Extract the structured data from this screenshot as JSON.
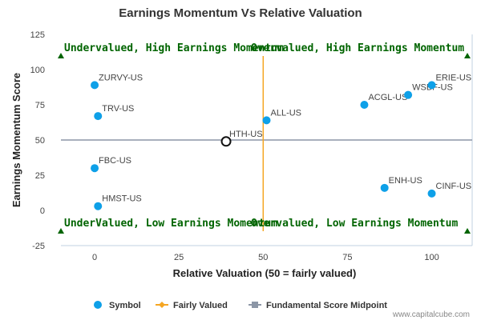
{
  "chart_data": {
    "type": "scatter",
    "title": "Earnings Momentum Vs Relative Valuation",
    "xlabel": "Relative Valuation (50 = fairly valued)",
    "ylabel": "Earnings Momentum Score",
    "xlim": [
      -10,
      112
    ],
    "ylim": [
      -25,
      125
    ],
    "x_ticks": [
      0,
      25,
      50,
      75,
      100
    ],
    "y_ticks": [
      -25,
      0,
      25,
      50,
      75,
      100,
      125
    ],
    "grid": false,
    "points": [
      {
        "label": "ZURVY-US",
        "x": 0,
        "y": 89
      },
      {
        "label": "TRV-US",
        "x": 1,
        "y": 67
      },
      {
        "label": "FBC-US",
        "x": 0,
        "y": 30
      },
      {
        "label": "HMST-US",
        "x": 1,
        "y": 3
      },
      {
        "label": "ALL-US",
        "x": 51,
        "y": 64
      },
      {
        "label": "ACGL-US",
        "x": 80,
        "y": 75
      },
      {
        "label": "WSBF-US",
        "x": 93,
        "y": 82
      },
      {
        "label": "ERIE-US",
        "x": 100,
        "y": 89
      },
      {
        "label": "ENH-US",
        "x": 86,
        "y": 16
      },
      {
        "label": "CINF-US",
        "x": 100,
        "y": 12
      }
    ],
    "highlight": {
      "label": "HTH-US",
      "x": 39,
      "y": 49
    },
    "fairly_valued_x": 50,
    "midpoint_y": 50,
    "quadrant_labels": {
      "top_left": "Undervalued, High Earnings Momentum",
      "top_right": "Overvalued, High Earnings Momentum",
      "bottom_left": "UnderValued, Low Earnings Momentum",
      "bottom_right": "Overvalued, Low Earnings Momentum"
    },
    "colors": {
      "symbol": "#0ea0e8",
      "fairly_valued": "#f5a623",
      "midpoint": "#8c96a6",
      "quadrant_text": "#006400",
      "highlight_stroke": "#111111"
    },
    "legend": {
      "position": "bottom",
      "items": [
        {
          "key": "symbol",
          "label": "Symbol"
        },
        {
          "key": "fairly_valued",
          "label": "Fairly Valued"
        },
        {
          "key": "midpoint",
          "label": "Fundamental Score Midpoint"
        }
      ]
    },
    "credit": "www.capitalcube.com"
  }
}
